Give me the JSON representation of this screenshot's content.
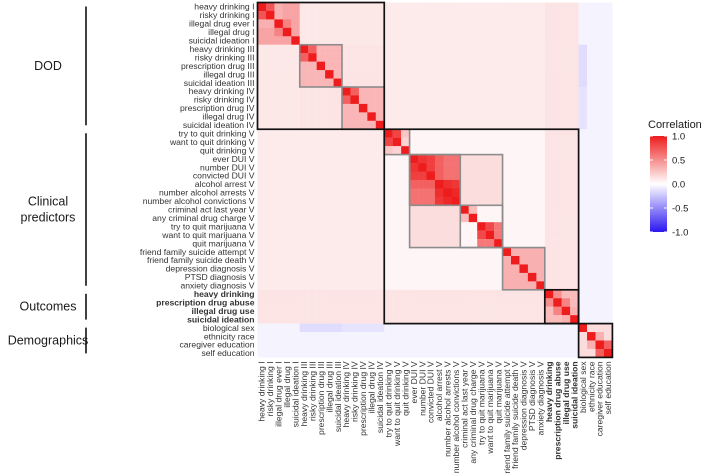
{
  "chart_data": {
    "type": "heatmap",
    "title": "",
    "xlabel": "",
    "ylabel": "",
    "variables": [
      "heavy drinking I",
      "risky drinking I",
      "illegal drug ever I",
      "illegal drug I",
      "suicidal ideation I",
      "heavy drinking III",
      "risky drinking III",
      "prescription drug III",
      "illegal drug III",
      "suicidal ideation III",
      "heavy drinking IV",
      "risky drinking IV",
      "prescription drug IV",
      "illegal drug IV",
      "suicidal ideation IV",
      "try to quit drinking V",
      "want to quit drinking V",
      "quit drinking V",
      "ever DUI V",
      "number DUI V",
      "convicted DUI V",
      "alcohol arrest V",
      "number alcohol arrests V",
      "number alcohol convictions V",
      "criminal act last year V",
      "any criminal drug charge V",
      "try to quit marijuana V",
      "want to quit marijuana V",
      "quit marijuana V",
      "friend family suicide attempt V",
      "friend family suicide death V",
      "depression diagnosis V",
      "PTSD diagnosis V",
      "anxiety diagnosis V",
      "heavy drinking",
      "prescription drug abuse",
      "illegal drug use",
      "suicidal ideation",
      "biological sex",
      "ethnicity race",
      "caregiver education",
      "self education"
    ],
    "bold_variables": [
      "heavy drinking",
      "prescription drug abuse",
      "illegal drug use",
      "suicidal ideation"
    ],
    "groups": [
      {
        "name": "DOD",
        "lines": [
          "DOD"
        ],
        "start": 0,
        "end": 14
      },
      {
        "name": "Clinical predictors",
        "lines": [
          "Clinical",
          "predictors"
        ],
        "start": 15,
        "end": 33
      },
      {
        "name": "Outcomes",
        "lines": [
          "Outcomes"
        ],
        "start": 34,
        "end": 37
      },
      {
        "name": "Demographics",
        "lines": [
          "Demographics"
        ],
        "start": 38,
        "end": 41
      }
    ],
    "boxes_black": [
      [
        0,
        14
      ],
      [
        15,
        37
      ],
      [
        34,
        37
      ],
      [
        38,
        41
      ]
    ],
    "boxes_gray": [
      [
        5,
        9
      ],
      [
        10,
        14
      ],
      [
        15,
        17
      ],
      [
        18,
        23
      ],
      [
        18,
        28
      ],
      [
        24,
        28
      ],
      [
        29,
        33
      ]
    ],
    "color_range": [
      -1.0,
      1.0
    ],
    "legend": {
      "title": "Correlation",
      "ticks": [
        "1.0",
        "0.5",
        "0.0",
        "-0.5",
        "-1.0"
      ],
      "tick_values": [
        1.0,
        0.5,
        0.0,
        -0.5,
        -1.0
      ]
    },
    "colors": {
      "positive": "#ee1c1c",
      "zero": "#ffffff",
      "negative": "#2a16f0"
    },
    "baseline_correlation": 0.04,
    "block_correlations": [
      {
        "rows": [
          0,
          4
        ],
        "cols": [
          0,
          4
        ],
        "value": 0.4
      },
      {
        "rows": [
          5,
          9
        ],
        "cols": [
          5,
          9
        ],
        "value": 0.32
      },
      {
        "rows": [
          10,
          14
        ],
        "cols": [
          10,
          14
        ],
        "value": 0.32
      },
      {
        "rows": [
          0,
          4
        ],
        "cols": [
          5,
          14
        ],
        "value": 0.1
      },
      {
        "rows": [
          5,
          9
        ],
        "cols": [
          10,
          14
        ],
        "value": 0.12
      },
      {
        "rows": [
          0,
          14
        ],
        "cols": [
          15,
          37
        ],
        "value": 0.09
      },
      {
        "rows": [
          0,
          14
        ],
        "cols": [
          34,
          37
        ],
        "value": 0.12
      },
      {
        "rows": [
          15,
          17
        ],
        "cols": [
          15,
          17
        ],
        "value": 0.45
      },
      {
        "rows": [
          18,
          23
        ],
        "cols": [
          18,
          23
        ],
        "value": 0.62
      },
      {
        "rows": [
          24,
          25
        ],
        "cols": [
          24,
          25
        ],
        "value": 0.3
      },
      {
        "rows": [
          26,
          28
        ],
        "cols": [
          26,
          28
        ],
        "value": 0.5
      },
      {
        "rows": [
          24,
          28
        ],
        "cols": [
          18,
          23
        ],
        "value": 0.15
      },
      {
        "rows": [
          29,
          33
        ],
        "cols": [
          29,
          33
        ],
        "value": 0.35
      },
      {
        "rows": [
          15,
          33
        ],
        "cols": [
          34,
          37
        ],
        "value": 0.12
      },
      {
        "rows": [
          34,
          37
        ],
        "cols": [
          34,
          37
        ],
        "value": 0.3
      },
      {
        "rows": [
          38,
          41
        ],
        "cols": [
          38,
          41
        ],
        "value": 0.15
      },
      {
        "rows": [
          0,
          37
        ],
        "cols": [
          38,
          41
        ],
        "value": -0.05
      },
      {
        "rows": [
          5,
          9
        ],
        "cols": [
          38,
          38
        ],
        "value": -0.15
      },
      {
        "rows": [
          10,
          14
        ],
        "cols": [
          38,
          38
        ],
        "value": -0.12
      },
      {
        "rows": [
          16,
          16
        ],
        "cols": [
          15,
          15
        ],
        "value": 0.82
      },
      {
        "rows": [
          17,
          17
        ],
        "cols": [
          15,
          15
        ],
        "value": 0.25
      },
      {
        "rows": [
          17,
          17
        ],
        "cols": [
          16,
          16
        ],
        "value": 0.2
      },
      {
        "rows": [
          19,
          19
        ],
        "cols": [
          18,
          18
        ],
        "value": 0.9
      },
      {
        "rows": [
          20,
          20
        ],
        "cols": [
          18,
          19
        ],
        "value": 0.85
      },
      {
        "rows": [
          21,
          21
        ],
        "cols": [
          18,
          20
        ],
        "value": 0.7
      },
      {
        "rows": [
          22,
          22
        ],
        "cols": [
          21,
          21
        ],
        "value": 0.92
      },
      {
        "rows": [
          23,
          23
        ],
        "cols": [
          22,
          22
        ],
        "value": 0.95
      },
      {
        "rows": [
          23,
          23
        ],
        "cols": [
          21,
          21
        ],
        "value": 0.88
      },
      {
        "rows": [
          1,
          1
        ],
        "cols": [
          0,
          0
        ],
        "value": 0.75
      },
      {
        "rows": [
          2,
          2
        ],
        "cols": [
          0,
          1
        ],
        "value": 0.35
      },
      {
        "rows": [
          3,
          3
        ],
        "cols": [
          2,
          2
        ],
        "value": 0.55
      },
      {
        "rows": [
          6,
          6
        ],
        "cols": [
          5,
          5
        ],
        "value": 0.7
      },
      {
        "rows": [
          11,
          11
        ],
        "cols": [
          10,
          10
        ],
        "value": 0.7
      },
      {
        "rows": [
          27,
          27
        ],
        "cols": [
          26,
          26
        ],
        "value": 0.8
      },
      {
        "rows": [
          28,
          28
        ],
        "cols": [
          26,
          27
        ],
        "value": 0.6
      },
      {
        "rows": [
          35,
          35
        ],
        "cols": [
          34,
          34
        ],
        "value": 0.5
      },
      {
        "rows": [
          36,
          36
        ],
        "cols": [
          35,
          35
        ],
        "value": 0.55
      },
      {
        "rows": [
          37,
          37
        ],
        "cols": [
          36,
          36
        ],
        "value": 0.35
      },
      {
        "rows": [
          41,
          41
        ],
        "cols": [
          40,
          40
        ],
        "value": 0.7
      },
      {
        "rows": [
          40,
          40
        ],
        "cols": [
          39,
          39
        ],
        "value": 0.35
      }
    ]
  }
}
